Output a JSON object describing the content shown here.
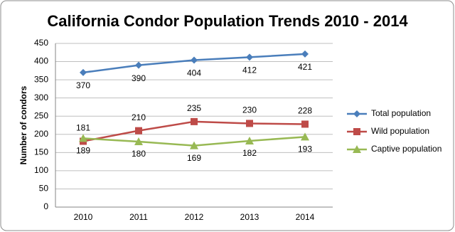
{
  "chart_data": {
    "type": "line",
    "title": "California Condor Population Trends 2010 - 2014",
    "y_label": "Number of condors",
    "categories": [
      "2010",
      "2011",
      "2012",
      "2013",
      "2014"
    ],
    "series": [
      {
        "name": "Total population",
        "color": "#4a7ebb",
        "marker": "diamond",
        "values": [
          370,
          390,
          404,
          412,
          421
        ]
      },
      {
        "name": "Wild population",
        "color": "#be4b48",
        "marker": "square",
        "values": [
          181,
          210,
          235,
          230,
          228
        ]
      },
      {
        "name": "Captive population",
        "color": "#98b954",
        "marker": "triangle",
        "values": [
          189,
          180,
          169,
          182,
          193
        ]
      }
    ],
    "ylim": [
      0,
      450
    ],
    "yticks": [
      0,
      50,
      100,
      150,
      200,
      250,
      300,
      350,
      400,
      450
    ],
    "grid": true,
    "legend": "right",
    "data_labels": true
  }
}
